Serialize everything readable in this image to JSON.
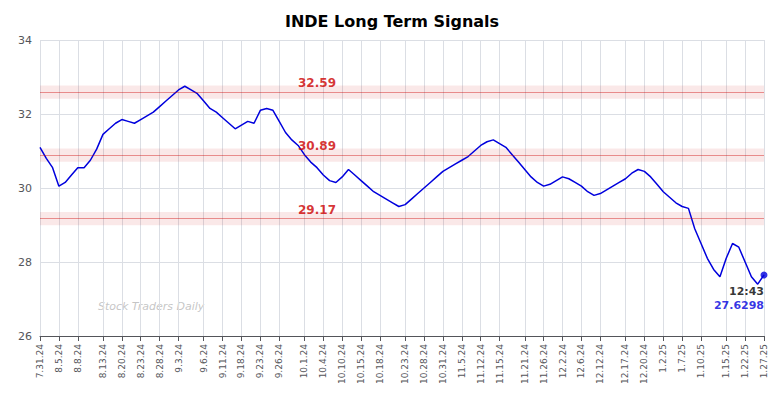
{
  "chart_data": {
    "type": "line",
    "title": "INDE Long Term Signals",
    "categories": [
      "7.31.24",
      null,
      null,
      "8.5.24",
      null,
      null,
      "8.8.24",
      null,
      null,
      null,
      "8.13.24",
      null,
      null,
      "8.20.24",
      null,
      null,
      "8.23.24",
      null,
      null,
      "8.28.24",
      null,
      null,
      "9.3.24",
      null,
      null,
      null,
      "9.6.24",
      null,
      null,
      "9.11.24",
      null,
      null,
      "9.18.24",
      null,
      null,
      "9.23.24",
      null,
      null,
      "9.26.24",
      null,
      null,
      null,
      "10.1.24",
      null,
      null,
      "10.4.24",
      null,
      null,
      "10.10.24",
      null,
      null,
      "10.15.24",
      null,
      null,
      "10.18.24",
      null,
      null,
      null,
      "10.23.24",
      null,
      null,
      "10.28.24",
      null,
      null,
      "10.31.24",
      null,
      null,
      "11.5.24",
      null,
      null,
      "11.12.24",
      null,
      null,
      "11.15.24",
      null,
      null,
      null,
      "11.21.24",
      null,
      null,
      "11.26.24",
      null,
      null,
      "12.2.24",
      null,
      null,
      "12.6.24",
      null,
      null,
      "12.12.24",
      null,
      null,
      null,
      "12.17.24",
      null,
      null,
      "12.20.24",
      null,
      null,
      "1.2.25",
      null,
      null,
      "1.7.25",
      null,
      null,
      "1.10.25",
      null,
      null,
      null,
      "1.15.25",
      null,
      null,
      "1.22.25",
      null,
      null,
      "1.27.25"
    ],
    "values": [
      31.1,
      30.8,
      30.55,
      30.05,
      30.15,
      30.35,
      30.55,
      30.55,
      30.75,
      31.05,
      31.45,
      31.6,
      31.75,
      31.85,
      31.8,
      31.75,
      31.85,
      31.95,
      32.05,
      32.2,
      32.35,
      32.5,
      32.65,
      32.75,
      32.65,
      32.55,
      32.35,
      32.15,
      32.05,
      31.9,
      31.75,
      31.6,
      31.7,
      31.8,
      31.75,
      32.1,
      32.15,
      32.1,
      31.8,
      31.5,
      31.3,
      31.15,
      30.9,
      30.7,
      30.55,
      30.35,
      30.2,
      30.15,
      30.3,
      30.5,
      30.35,
      30.2,
      30.05,
      29.9,
      29.8,
      29.7,
      29.6,
      29.5,
      29.55,
      29.7,
      29.85,
      30.0,
      30.15,
      30.3,
      30.45,
      30.55,
      30.65,
      30.75,
      30.85,
      31.0,
      31.15,
      31.25,
      31.3,
      31.2,
      31.1,
      30.9,
      30.7,
      30.5,
      30.3,
      30.15,
      30.05,
      30.1,
      30.2,
      30.3,
      30.25,
      30.15,
      30.05,
      29.9,
      29.8,
      29.85,
      29.95,
      30.05,
      30.15,
      30.25,
      30.4,
      30.5,
      30.45,
      30.3,
      30.1,
      29.9,
      29.75,
      29.6,
      29.5,
      29.45,
      28.9,
      28.5,
      28.1,
      27.8,
      27.6,
      28.1,
      28.5,
      28.4,
      28.0,
      27.6,
      27.4,
      27.65
    ],
    "color": "#0000dd",
    "ylim": [
      26,
      34
    ],
    "yticks": [
      26,
      28,
      30,
      32,
      34
    ],
    "grid": true,
    "hlines": [
      {
        "y": 32.59,
        "label": "32.59",
        "band": [
          32.41,
          32.77
        ],
        "color": "#cc0000"
      },
      {
        "y": 30.89,
        "label": "30.89",
        "band": [
          30.71,
          31.07
        ],
        "color": "#cc0000"
      },
      {
        "y": 29.17,
        "label": "29.17",
        "band": [
          28.99,
          29.35
        ],
        "color": "#cc0000"
      }
    ],
    "annotations": [
      {
        "text": "12:43",
        "color": "#000000"
      },
      {
        "text": "27.6298",
        "color": "#0000dd"
      }
    ],
    "watermark": "Stock Traders Daily"
  }
}
